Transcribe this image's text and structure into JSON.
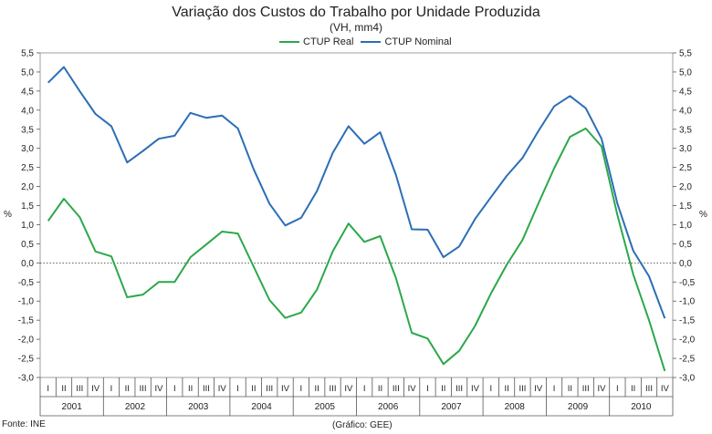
{
  "chart_data": {
    "type": "line",
    "title": "Variação dos Custos do Trabalho por Unidade Produzida",
    "subtitle": "(VH, mm4)",
    "ylabel_left": "%",
    "ylabel_right": "%",
    "ylim": [
      -3.0,
      5.5
    ],
    "ytick_step": 0.5,
    "ytick_labels": [
      "5,5",
      "5,0",
      "4,5",
      "4,0",
      "3,5",
      "3,0",
      "2,5",
      "2,0",
      "1,5",
      "1,0",
      "0,5",
      "0,0",
      "-0,5",
      "-1,0",
      "-1,5",
      "-2,0",
      "-2,5",
      "-3,0"
    ],
    "quarters": [
      "I",
      "II",
      "III",
      "IV"
    ],
    "years": [
      "2001",
      "2002",
      "2003",
      "2004",
      "2005",
      "2006",
      "2007",
      "2008",
      "2009",
      "2010"
    ],
    "legend_position": "top-center",
    "series": [
      {
        "name": "CTUP Real",
        "color": "#2ca84a",
        "values": [
          1.1,
          1.68,
          1.2,
          0.3,
          0.17,
          -0.9,
          -0.83,
          -0.5,
          -0.5,
          0.15,
          0.48,
          0.82,
          0.77,
          -0.1,
          -0.97,
          -1.44,
          -1.3,
          -0.7,
          0.3,
          1.03,
          0.55,
          0.7,
          -0.4,
          -1.83,
          -1.98,
          -2.65,
          -2.3,
          -1.65,
          -0.8,
          -0.05,
          0.6,
          1.55,
          2.48,
          3.3,
          3.52,
          3.05,
          1.25,
          -0.3,
          -1.5,
          -2.83
        ]
      },
      {
        "name": "CTUP Nominal",
        "color": "#2c6eb5",
        "values": [
          4.72,
          5.13,
          4.5,
          3.9,
          3.58,
          2.63,
          2.93,
          3.25,
          3.33,
          3.93,
          3.8,
          3.86,
          3.52,
          2.45,
          1.55,
          0.98,
          1.18,
          1.88,
          2.88,
          3.58,
          3.12,
          3.42,
          2.3,
          0.88,
          0.87,
          0.15,
          0.43,
          1.15,
          1.72,
          2.28,
          2.75,
          3.45,
          4.1,
          4.37,
          4.05,
          3.25,
          1.55,
          0.32,
          -0.35,
          -1.45
        ]
      }
    ]
  },
  "footer": {
    "source": "Fonte: INE",
    "credit": "(Gráfico: GEE)"
  }
}
